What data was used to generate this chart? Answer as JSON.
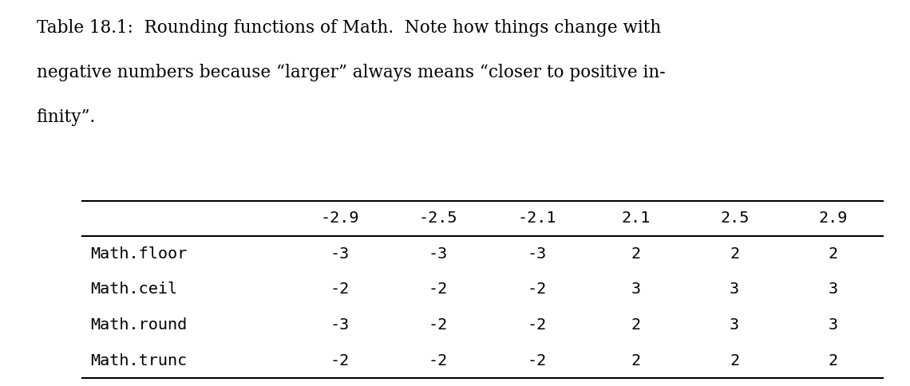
{
  "caption_line1": "Table 18.1:  Rounding functions of Math.  Note how things change with",
  "caption_line2": "negative numbers because “larger” always means “closer to positive in-",
  "caption_line3": "finity”.",
  "col_headers": [
    "-2.9",
    "-2.5",
    "-2.1",
    "2.1",
    "2.5",
    "2.9"
  ],
  "row_labels": [
    "Math.floor",
    "Math.ceil",
    "Math.round",
    "Math.trunc"
  ],
  "table_data": [
    [
      "-3",
      "-3",
      "-3",
      "2",
      "2",
      "2"
    ],
    [
      "-2",
      "-2",
      "-2",
      "3",
      "3",
      "3"
    ],
    [
      "-3",
      "-2",
      "-2",
      "2",
      "3",
      "3"
    ],
    [
      "-2",
      "-2",
      "-2",
      "2",
      "2",
      "2"
    ]
  ],
  "bg_color": "#ffffff",
  "text_color": "#000000",
  "caption_fontsize": 15.5,
  "cell_fontsize": 14.5,
  "mono_family": "monospace",
  "serif_family": "serif",
  "line_color": "#000000",
  "line_lw": 1.5
}
